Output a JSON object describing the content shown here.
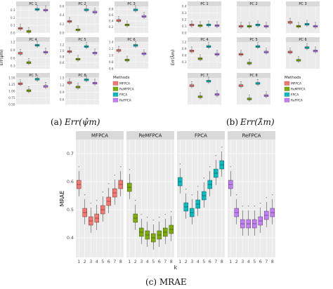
{
  "colors": {
    "MFPCA": "#F8766D",
    "ReMFPCA": "#7CAE00",
    "FPCA": "#00BFC4",
    "ReFPCA": "#C77CFF",
    "panel_bg": "#EBEBEB",
    "strip_bg": "#D9D9D9",
    "grid": "#FFFFFF"
  },
  "methods": [
    "MFPCA",
    "ReMFPCA",
    "FPCA",
    "ReFPCA"
  ],
  "captions": {
    "a": {
      "label": "(a)",
      "math": "Err(ψ̂m)"
    },
    "b": {
      "label": "(b)",
      "math": "Err(λ̂m)"
    },
    "c": {
      "label": "(c) MRAE"
    }
  },
  "chart_data": [
    {
      "type": "box",
      "ylabel": "Err(ψ̂m)",
      "legend": {
        "title": "Methods",
        "placement": "bottom-right",
        "entries": [
          "MFPCA",
          "ReMFPCA",
          "FPCA",
          "ReFPCA"
        ]
      },
      "panels": [
        {
          "title": "PC 1",
          "ylim": [
            0.0,
            0.35
          ],
          "ticks": [
            "0.3",
            "0.2",
            "0.1",
            "0.0"
          ],
          "tick_values": [
            0.3,
            0.2,
            0.1,
            0.0
          ],
          "medians": [
            0.06,
            0.02,
            0.31,
            0.3
          ]
        },
        {
          "title": "PC 2",
          "ylim": [
            0.0,
            0.6
          ],
          "ticks": [
            "0.6",
            "0.4",
            "0.2",
            "0.0"
          ],
          "tick_values": [
            0.6,
            0.4,
            0.2,
            0.0
          ],
          "medians": [
            0.26,
            0.07,
            0.52,
            0.47
          ]
        },
        {
          "title": "PC 3",
          "ylim": [
            0.0,
            0.9
          ],
          "ticks": [
            "0.8",
            "0.6",
            "0.4",
            "0.2"
          ],
          "tick_values": [
            0.8,
            0.6,
            0.4,
            0.2
          ],
          "medians": [
            0.42,
            0.27,
            0.78,
            0.56
          ]
        },
        {
          "title": "PC 4",
          "ylim": [
            0.2,
            1.2
          ],
          "ticks": [
            "1.2",
            "0.9",
            "0.6",
            "0.3"
          ],
          "tick_values": [
            1.2,
            0.9,
            0.6,
            0.3
          ],
          "medians": [
            0.78,
            0.43,
            1.08,
            0.82
          ]
        },
        {
          "title": "PC 5",
          "ylim": [
            0.4,
            1.3
          ],
          "ticks": [
            "1.2",
            "1.0",
            "0.8",
            "0.6"
          ],
          "tick_values": [
            1.2,
            1.0,
            0.8,
            0.6
          ],
          "medians": [
            0.98,
            0.72,
            1.15,
            0.93
          ]
        },
        {
          "title": "PC 6",
          "ylim": [
            0.6,
            1.4
          ],
          "ticks": [
            "1.4",
            "1.2",
            "1.0",
            "0.8",
            "0.6"
          ],
          "tick_values": [
            1.4,
            1.2,
            1.0,
            0.8,
            0.6
          ],
          "medians": [
            1.15,
            0.86,
            1.3,
            1.05
          ]
        },
        {
          "title": "PC 7",
          "ylim": [
            0.5,
            1.5
          ],
          "ticks": [
            "1.50",
            "1.25",
            "1.00",
            "0.75",
            "0.50"
          ],
          "tick_values": [
            1.5,
            1.25,
            1.0,
            0.75,
            0.5
          ],
          "medians": [
            1.28,
            1.02,
            1.45,
            1.18
          ]
        },
        {
          "title": "PC 8",
          "ylim": [
            0.4,
            1.5
          ],
          "ticks": [
            "1.5",
            "1.2",
            "0.9",
            "0.6"
          ],
          "tick_values": [
            1.5,
            1.2,
            0.9,
            0.6
          ],
          "medians": [
            1.3,
            1.12,
            1.42,
            1.28
          ]
        }
      ]
    },
    {
      "type": "box",
      "ylabel": "Err(λ̂m)",
      "legend": {
        "title": "Methods",
        "placement": "bottom-right",
        "entries": [
          "MFPCA",
          "ReMFPCA",
          "FPCA",
          "ReFPCA"
        ]
      },
      "panels": [
        {
          "title": "PC 1",
          "ylim": [
            0.0,
            0.4
          ],
          "ticks": [
            "0.4",
            "0.3",
            "0.2",
            "0.1",
            "0.0"
          ],
          "tick_values": [
            0.4,
            0.3,
            0.2,
            0.1,
            0.0
          ],
          "medians": [
            0.12,
            0.11,
            0.12,
            0.11
          ]
        },
        {
          "title": "PC 2",
          "ylim": [
            0.0,
            0.4
          ],
          "ticks": [],
          "tick_values": [],
          "medians": [
            0.1,
            0.1,
            0.12,
            0.1
          ]
        },
        {
          "title": "PC 3",
          "ylim": [
            0.0,
            0.4
          ],
          "ticks": [],
          "tick_values": [],
          "medians": [
            0.16,
            0.1,
            0.13,
            0.1
          ]
        },
        {
          "title": "PC 4",
          "ylim": [
            0.0,
            1.2
          ],
          "ticks": [
            "1.2",
            "0.9",
            "0.6",
            "0.3"
          ],
          "tick_values": [
            1.2,
            0.9,
            0.6,
            0.3
          ],
          "medians": [
            0.8,
            0.45,
            1.0,
            0.65
          ]
        },
        {
          "title": "PC 5",
          "ylim": [
            0.0,
            1.2
          ],
          "ticks": [],
          "tick_values": [],
          "medians": [
            0.65,
            0.25,
            1.0,
            0.75
          ]
        },
        {
          "title": "PC 6",
          "ylim": [
            0.0,
            1.2
          ],
          "ticks": [],
          "tick_values": [],
          "medians": [
            0.75,
            0.38,
            0.95,
            0.8
          ]
        },
        {
          "title": "PC 7",
          "ylim": [
            0.0,
            1.2
          ],
          "ticks": [],
          "tick_values": [],
          "medians": [
            0.85,
            0.35,
            1.05,
            0.45
          ]
        },
        {
          "title": "PC 8",
          "ylim": [
            0.0,
            1.2
          ],
          "ticks": [],
          "tick_values": [],
          "medians": [
            0.85,
            0.25,
            0.95,
            0.4
          ]
        }
      ]
    },
    {
      "type": "box",
      "xlabel": "k",
      "ylabel": "MRAE",
      "ylim": [
        0.33,
        0.75
      ],
      "yticks": [
        0.4,
        0.5,
        0.6,
        0.7
      ],
      "ytick_labels": [
        "0.4",
        "0.5",
        "0.6",
        "0.7"
      ],
      "x": [
        1,
        2,
        3,
        4,
        5,
        6,
        7,
        8
      ],
      "xtick_labels": [
        "1",
        "2",
        "3",
        "4",
        "5",
        "6",
        "7",
        "8"
      ],
      "panels": [
        {
          "title": "MFPCA",
          "series": "MFPCA",
          "medians": [
            0.59,
            0.49,
            0.46,
            0.47,
            0.5,
            0.53,
            0.56,
            0.59
          ]
        },
        {
          "title": "ReMFPCA",
          "series": "ReMFPCA",
          "medians": [
            0.58,
            0.47,
            0.42,
            0.41,
            0.4,
            0.41,
            0.42,
            0.43
          ]
        },
        {
          "title": "FPCA",
          "series": "FPCA",
          "medians": [
            0.6,
            0.51,
            0.49,
            0.52,
            0.55,
            0.59,
            0.63,
            0.66
          ]
        },
        {
          "title": "ReFPCA",
          "series": "ReFPCA",
          "medians": [
            0.59,
            0.49,
            0.45,
            0.45,
            0.45,
            0.46,
            0.48,
            0.49
          ]
        }
      ]
    }
  ]
}
